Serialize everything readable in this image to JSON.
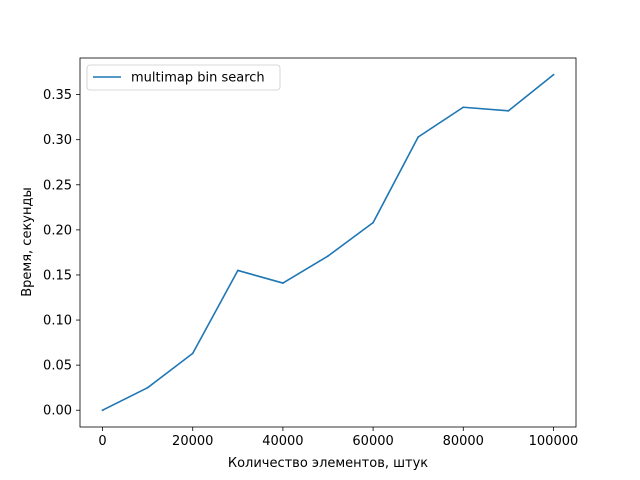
{
  "chart_data": {
    "type": "line",
    "title": "",
    "xlabel": "Количество элементов, штук",
    "ylabel": "Время, секунды",
    "xlim": [
      -5000,
      105000
    ],
    "ylim": [
      -0.0186,
      0.3906
    ],
    "xticks": [
      0,
      20000,
      40000,
      60000,
      80000,
      100000
    ],
    "xtick_labels": [
      "0",
      "20000",
      "40000",
      "60000",
      "80000",
      "100000"
    ],
    "yticks": [
      0.0,
      0.05,
      0.1,
      0.15,
      0.2,
      0.25,
      0.3,
      0.35
    ],
    "ytick_labels": [
      "0.00",
      "0.05",
      "0.10",
      "0.15",
      "0.20",
      "0.25",
      "0.30",
      "0.35"
    ],
    "grid": false,
    "legend_position": "top-left",
    "series": [
      {
        "name": "multimap bin search",
        "color": "#1f77b4",
        "x": [
          0,
          10000,
          20000,
          30000,
          40000,
          50000,
          60000,
          70000,
          80000,
          90000,
          100000
        ],
        "y": [
          0.0,
          0.025,
          0.063,
          0.155,
          0.141,
          0.171,
          0.208,
          0.303,
          0.336,
          0.332,
          0.372
        ]
      }
    ]
  }
}
